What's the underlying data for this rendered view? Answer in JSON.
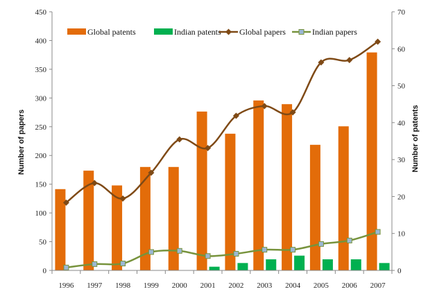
{
  "chart_data": {
    "type": "bar",
    "title": "",
    "xlabel": "",
    "ylabel": "Number of papers",
    "y2label": "Number of patents",
    "ylim": [
      0,
      450
    ],
    "y2lim": [
      0,
      70
    ],
    "yticks": [
      "0",
      "50",
      "100",
      "150",
      "200",
      "250",
      "300",
      "350",
      "400",
      "450"
    ],
    "y2ticks": [
      "0",
      "10",
      "20",
      "30",
      "40",
      "50",
      "60",
      "70"
    ],
    "categories": [
      "1996",
      "1997",
      "1998",
      "1999",
      "2000",
      "2001",
      "2002",
      "2003",
      "2004",
      "2005",
      "2006",
      "2007"
    ],
    "grid": false,
    "legend_position": "top",
    "series": [
      {
        "name": "Global patents",
        "kind": "bar",
        "axis": "right",
        "color": "#E36C09",
        "values": [
          22,
          27,
          23,
          28,
          28,
          43,
          37,
          46,
          45,
          34,
          39,
          59
        ]
      },
      {
        "name": "Indian patents",
        "kind": "bar",
        "axis": "right",
        "color": "#00B050",
        "values": [
          0,
          0,
          0,
          0,
          0,
          1,
          2,
          3,
          4,
          3,
          3,
          2
        ]
      },
      {
        "name": "Global papers",
        "kind": "line",
        "axis": "left",
        "color": "#7F4A16",
        "marker": "diamond",
        "values": [
          118,
          152,
          125,
          170,
          228,
          213,
          269,
          286,
          275,
          362,
          366,
          398
        ]
      },
      {
        "name": "Indian papers",
        "kind": "line",
        "axis": "left",
        "color": "#77933C",
        "marker": "square",
        "values": [
          5,
          11,
          12,
          32,
          34,
          25,
          29,
          36,
          36,
          46,
          52,
          67
        ]
      }
    ]
  }
}
